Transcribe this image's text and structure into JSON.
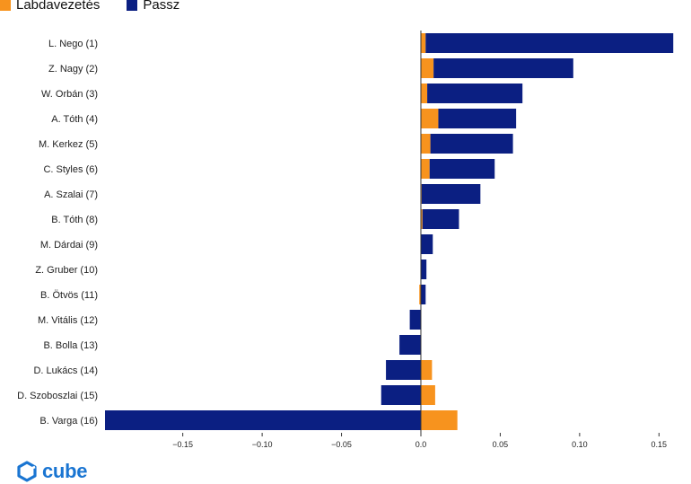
{
  "brand": {
    "name": "cube",
    "color": "#1a75d2"
  },
  "legend": [
    {
      "label": "Labdavezetés",
      "color": "#f7931e"
    },
    {
      "label": "Passz",
      "color": "#0b1f82"
    }
  ],
  "chart_data": {
    "type": "bar",
    "orientation": "horizontal",
    "stacking": "diverging",
    "categories": [
      "L. Nego (1)",
      "Z. Nagy (2)",
      "W. Orbán (3)",
      "A. Tóth (4)",
      "M. Kerkez (5)",
      "C. Styles (6)",
      "A. Szalai (7)",
      "B. Tóth (8)",
      "M. Dárdai (9)",
      "Z. Gruber (10)",
      "B. Ötvös (11)",
      "M. Vitális (12)",
      "B. Bolla (13)",
      "D. Lukács (14)",
      "D. Szoboszlai (15)",
      "B. Varga (16)"
    ],
    "series": [
      {
        "name": "Labdavezetés",
        "color": "#f7931e",
        "values": [
          0.003,
          0.008,
          0.004,
          0.011,
          0.006,
          0.0055,
          0.0005,
          0.001,
          0.0,
          0.0,
          -0.001,
          0.0,
          0.0,
          0.007,
          0.009,
          0.023
        ]
      },
      {
        "name": "Passz",
        "color": "#0b1f82",
        "values": [
          0.156,
          0.088,
          0.06,
          0.049,
          0.052,
          0.041,
          0.037,
          0.023,
          0.0075,
          0.0035,
          0.003,
          -0.007,
          -0.0135,
          -0.022,
          -0.025,
          -0.199
        ]
      }
    ],
    "xlim": [
      -0.199,
      0.16
    ],
    "xticks": [
      -0.15,
      -0.1,
      -0.05,
      0.0,
      0.05,
      0.1,
      0.15
    ],
    "xtick_labels": [
      "−0.15",
      "−0.10",
      "−0.05",
      "0.0",
      "0.05",
      "0.10",
      "0.15"
    ],
    "legend_position": "top-left"
  }
}
